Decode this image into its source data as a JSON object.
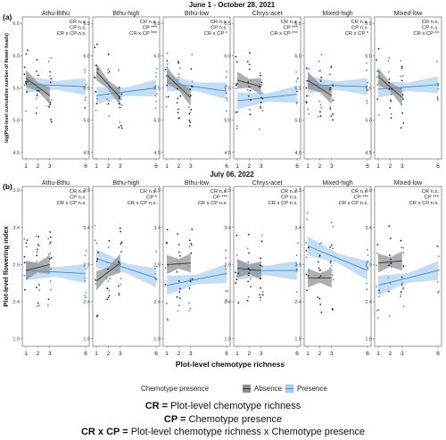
{
  "figure": {
    "xlabel": "Plot-level chemotype richness",
    "legend": {
      "title": "Chemotype presence",
      "items": [
        {
          "label": "Absence",
          "color": "#3a3a3a",
          "band": "#8c8c8c"
        },
        {
          "label": "Presence",
          "color": "#3d8fd1",
          "band": "#a9cff0"
        }
      ]
    },
    "definitions": [
      {
        "abbr": "CR",
        "text": "Plot-level chemotype richness"
      },
      {
        "abbr": "CP",
        "text": "Chemotype presence"
      },
      {
        "abbr": "CR x CP",
        "text": "Plot-level chemotype richness x Chemotype presence"
      }
    ]
  },
  "chart_data": [
    {
      "type": "scatter",
      "panel_label": "(a)",
      "title": "June 1 - October 28, 2021",
      "ylabel": "log(Plot-level cumulative number of flower heads)",
      "ylim": [
        4.4,
        6.6
      ],
      "yticks": [
        "4.5",
        "5.0",
        "5.5",
        "6.0",
        "6.5"
      ],
      "xticks": [
        "1",
        "2",
        "3",
        "6"
      ],
      "facets": [
        {
          "name": "Athu-Bthu",
          "stats": [
            "CR n.s.",
            "CP n.s.",
            "CR x CP n.s."
          ],
          "absence": {
            "x": [
              1,
              3
            ],
            "y": [
              5.65,
              5.38
            ]
          },
          "presence": {
            "x": [
              1,
              6
            ],
            "y": [
              5.56,
              5.52
            ]
          }
        },
        {
          "name": "Bthu-high",
          "stats": [
            "CR n.s.",
            "CP ***",
            "CR x CP ***"
          ],
          "absence": {
            "x": [
              1,
              3
            ],
            "y": [
              5.75,
              5.35
            ]
          },
          "presence": {
            "x": [
              1,
              6
            ],
            "y": [
              5.38,
              5.5
            ]
          }
        },
        {
          "name": "Bthu-low",
          "stats": [
            "CR n.s.",
            "CP n.s.",
            "CR x CP *"
          ],
          "absence": {
            "x": [
              1,
              3
            ],
            "y": [
              5.7,
              5.35
            ]
          },
          "presence": {
            "x": [
              1,
              6
            ],
            "y": [
              5.58,
              5.45
            ]
          }
        },
        {
          "name": "Chrys-acet",
          "stats": [
            "CR n.s.",
            "CP ***",
            "CR x CP ***"
          ],
          "absence": {
            "x": [
              1,
              3
            ],
            "y": [
              5.62,
              5.52
            ]
          },
          "presence": {
            "x": [
              1,
              6
            ],
            "y": [
              5.3,
              5.4
            ]
          }
        },
        {
          "name": "Mixed-high",
          "stats": [
            "CR n.s.",
            "CP n.s.",
            "CR x CP *"
          ],
          "absence": {
            "x": [
              1,
              3
            ],
            "y": [
              5.62,
              5.38
            ]
          },
          "presence": {
            "x": [
              1,
              6
            ],
            "y": [
              5.55,
              5.52
            ]
          }
        },
        {
          "name": "Mixed-low",
          "stats": [
            "CR n.s.",
            "CP n.s.",
            "CR x CP **"
          ],
          "absence": {
            "x": [
              1,
              3
            ],
            "y": [
              5.68,
              5.35
            ]
          },
          "presence": {
            "x": [
              1,
              6
            ],
            "y": [
              5.48,
              5.55
            ]
          }
        }
      ]
    },
    {
      "type": "scatter",
      "panel_label": "(b)",
      "title": "July 06, 2022",
      "ylabel": "Plot-level flowering index",
      "ylim": [
        1.8,
        3.95
      ],
      "yticks": [
        "1.9",
        "2.4",
        "2.9",
        "3.4",
        "3.9"
      ],
      "xticks": [
        "1",
        "2",
        "3",
        "6"
      ],
      "facets": [
        {
          "name": "Athu-Bthu",
          "stats": [
            "CR n.s.",
            "CP n.s.",
            "CR x CP n.s."
          ],
          "absence": {
            "x": [
              1,
              3
            ],
            "y": [
              2.82,
              2.9
            ]
          },
          "presence": {
            "x": [
              1,
              6
            ],
            "y": [
              2.82,
              2.78
            ]
          }
        },
        {
          "name": "Bthu-high",
          "stats": [
            "CR n.s.",
            "CP *",
            "CR x CP n.s."
          ],
          "absence": {
            "x": [
              1,
              3
            ],
            "y": [
              2.68,
              2.92
            ]
          },
          "presence": {
            "x": [
              1,
              6
            ],
            "y": [
              2.98,
              2.72
            ]
          }
        },
        {
          "name": "Bthu-low",
          "stats": [
            "CR n.s.",
            "CP ***",
            "CR x CP n.s."
          ],
          "absence": {
            "x": [
              1,
              3
            ],
            "y": [
              2.9,
              2.92
            ]
          },
          "presence": {
            "x": [
              1,
              6
            ],
            "y": [
              2.62,
              2.78
            ]
          }
        },
        {
          "name": "Chrys-acet",
          "stats": [
            "CR n.s.",
            "CP n.s.",
            "CR x CP n.s."
          ],
          "absence": {
            "x": [
              1,
              3
            ],
            "y": [
              2.85,
              2.82
            ]
          },
          "presence": {
            "x": [
              1,
              6
            ],
            "y": [
              2.82,
              2.82
            ]
          }
        },
        {
          "name": "Mixed-high",
          "stats": [
            "CR n.s.",
            "CP ***",
            "CR x CP n.s."
          ],
          "absence": {
            "x": [
              1,
              3
            ],
            "y": [
              2.72,
              2.72
            ]
          },
          "presence": {
            "x": [
              1,
              6
            ],
            "y": [
              3.15,
              2.82
            ]
          }
        },
        {
          "name": "Mixed-low",
          "stats": [
            "CR n.s.",
            "CP ***",
            "CR x CP n.s."
          ],
          "absence": {
            "x": [
              1,
              3
            ],
            "y": [
              2.92,
              2.95
            ]
          },
          "presence": {
            "x": [
              1,
              6
            ],
            "y": [
              2.62,
              2.82
            ]
          }
        }
      ]
    }
  ]
}
